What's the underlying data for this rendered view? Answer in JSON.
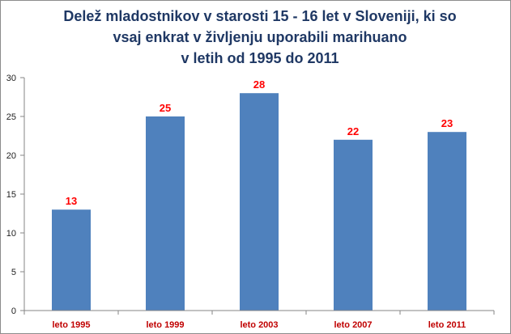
{
  "chart_data": {
    "type": "bar",
    "title": "Delež mladostnikov v starosti 15 - 16 let v Sloveniji, ki so\nvsaj enkrat v življenju uporabili marihuano\nv letih od 1995 do 2011",
    "categories": [
      "leto 1995",
      "leto 1999",
      "leto 2003",
      "leto 2007",
      "leto 2011"
    ],
    "values": [
      13,
      25,
      28,
      22,
      23
    ],
    "data_labels": [
      "13",
      "25",
      "28",
      "22",
      "23"
    ],
    "ylim": [
      0,
      30
    ],
    "yticks": [
      0,
      5,
      10,
      15,
      20,
      25,
      30
    ],
    "grid": false,
    "legend": "none",
    "colors": {
      "bar": "#4f81bd",
      "title": "#1f3864",
      "data_label": "#ff0000",
      "category_label": "#c00000",
      "axis": "#868686"
    }
  }
}
